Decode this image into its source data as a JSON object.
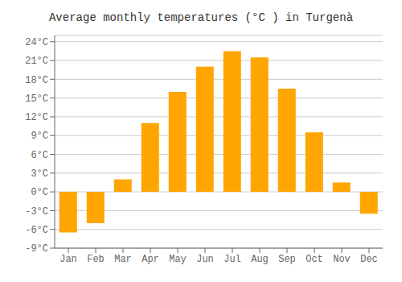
{
  "chart_data": {
    "type": "bar",
    "title": "Average monthly temperatures (°C ) in Turgenà",
    "categories": [
      "Jan",
      "Feb",
      "Mar",
      "Apr",
      "May",
      "Jun",
      "Jul",
      "Aug",
      "Sep",
      "Oct",
      "Nov",
      "Dec"
    ],
    "values": [
      -6.5,
      -5.0,
      2.0,
      11.0,
      16.0,
      20.0,
      22.5,
      21.5,
      16.5,
      9.5,
      1.5,
      -3.5
    ],
    "color": "#FFA500",
    "ylim": [
      -9,
      25
    ],
    "yticks": [
      {
        "value": -9,
        "label": "-9°C"
      },
      {
        "value": -6,
        "label": "-6°C"
      },
      {
        "value": -3,
        "label": "-3°C"
      },
      {
        "value": 0,
        "label": "0°C"
      },
      {
        "value": 3,
        "label": "3°C"
      },
      {
        "value": 6,
        "label": "6°C"
      },
      {
        "value": 9,
        "label": "9°C"
      },
      {
        "value": 12,
        "label": "12°C"
      },
      {
        "value": 15,
        "label": "15°C"
      },
      {
        "value": 18,
        "label": "18°C"
      },
      {
        "value": 21,
        "label": "21°C"
      },
      {
        "value": 24,
        "label": "24°C"
      }
    ],
    "grid": true
  }
}
